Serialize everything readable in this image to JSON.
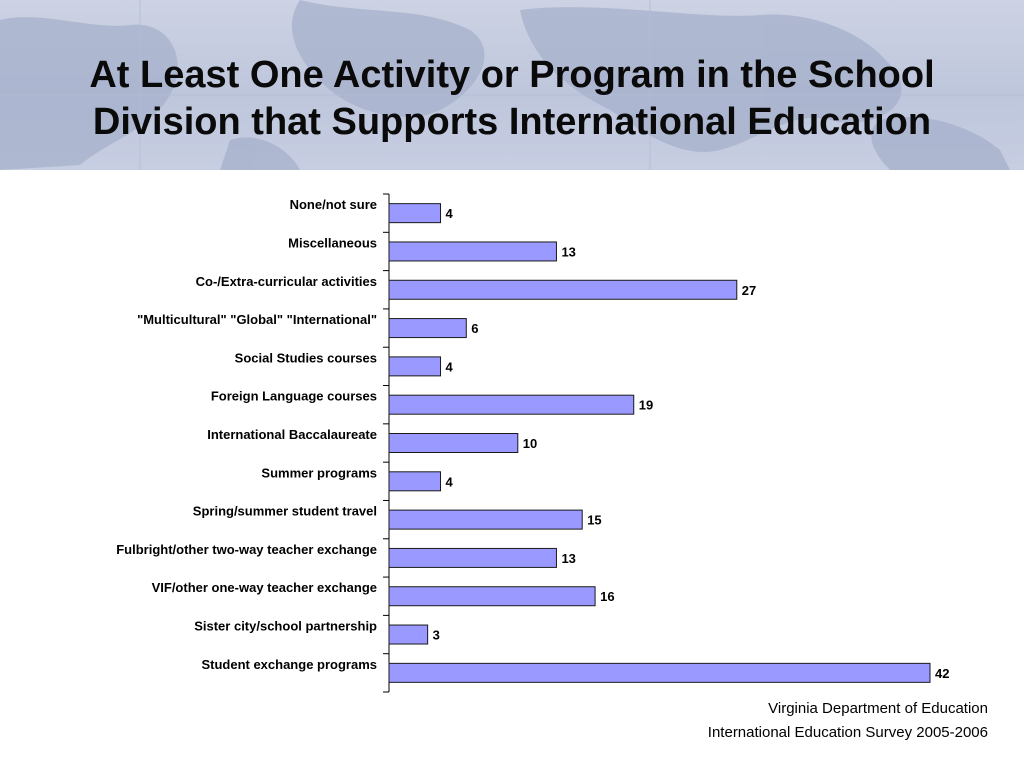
{
  "slide": {
    "title_line1": "At Least One Activity or Program in the School",
    "title_line2": "Division that Supports International Education",
    "source_line1": "Virginia Department of Education",
    "source_line2": "International Education Survey 2005-2006"
  },
  "chart_data": {
    "type": "bar",
    "orientation": "horizontal",
    "categories": [
      "None/not sure",
      "Miscellaneous",
      "Co-/Extra-curricular activities",
      "\"Multicultural\" \"Global\" \"International\"",
      "Social Studies courses",
      "Foreign Language courses",
      "International Baccalaureate",
      "Summer programs",
      "Spring/summer student travel",
      "Fulbright/other two-way teacher exchange",
      "VIF/other one-way teacher exchange",
      "Sister city/school partnership",
      "Student exchange programs"
    ],
    "values": [
      4,
      13,
      27,
      6,
      4,
      19,
      10,
      4,
      15,
      13,
      16,
      3,
      42
    ],
    "title": "",
    "xlabel": "",
    "ylabel": "",
    "xlim": [
      0,
      42
    ],
    "grid": false,
    "legend": "none",
    "bar_color": "#9999ff",
    "data_labels": true
  }
}
